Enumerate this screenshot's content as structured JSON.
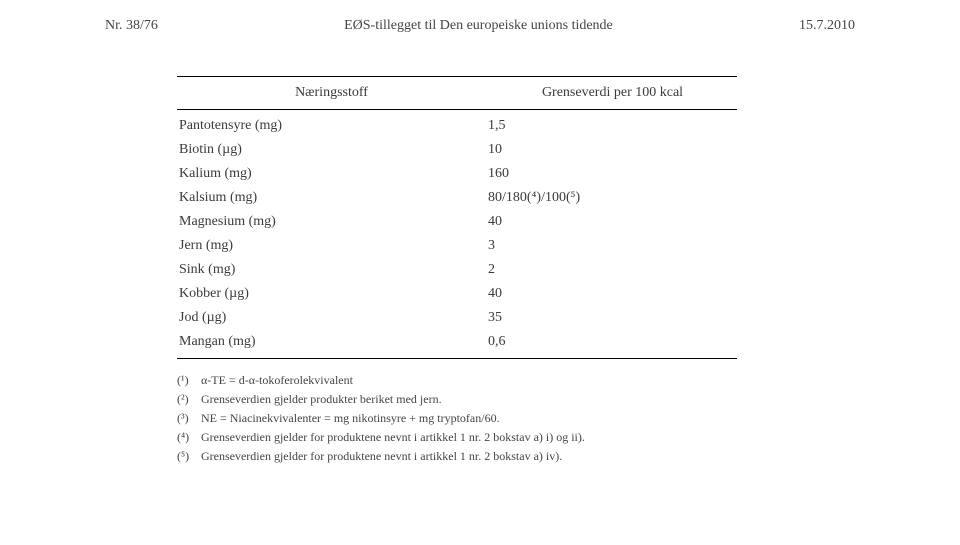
{
  "header": {
    "left": "Nr. 38/76",
    "center": "EØS-tillegget til Den europeiske unions tidende",
    "right": "15.7.2010"
  },
  "table": {
    "col1_header": "Næringsstoff",
    "col2_header": "Grenseverdi per 100 kcal",
    "rows": [
      {
        "name": "Pantotensyre (mg)",
        "value": "1,5"
      },
      {
        "name": "Biotin (µg)",
        "value": "10"
      },
      {
        "name": "Kalium (mg)",
        "value": "160"
      },
      {
        "name": "Kalsium (mg)",
        "value": "80/180(⁴)/100(⁵)"
      },
      {
        "name": "Magnesium (mg)",
        "value": "40"
      },
      {
        "name": "Jern (mg)",
        "value": "3"
      },
      {
        "name": "Sink (mg)",
        "value": "2"
      },
      {
        "name": "Kobber (µg)",
        "value": "40"
      },
      {
        "name": "Jod (µg)",
        "value": "35"
      },
      {
        "name": "Mangan (mg)",
        "value": "0,6"
      }
    ]
  },
  "footnotes": [
    {
      "mark": "(¹)",
      "text": "α-TE = d-α-tokoferolekvivalent"
    },
    {
      "mark": "(²)",
      "text": "Grenseverdien gjelder produkter beriket med jern."
    },
    {
      "mark": "(³)",
      "text": "NE = Niacinekvivalenter = mg nikotinsyre + mg tryptofan/60."
    },
    {
      "mark": "(⁴)",
      "text": "Grenseverdien gjelder for produktene nevnt i artikkel 1 nr. 2 bokstav a) i) og ii)."
    },
    {
      "mark": "(⁵)",
      "text": "Grenseverdien gjelder for produktene nevnt i artikkel 1 nr. 2 bokstav a) iv)."
    }
  ]
}
